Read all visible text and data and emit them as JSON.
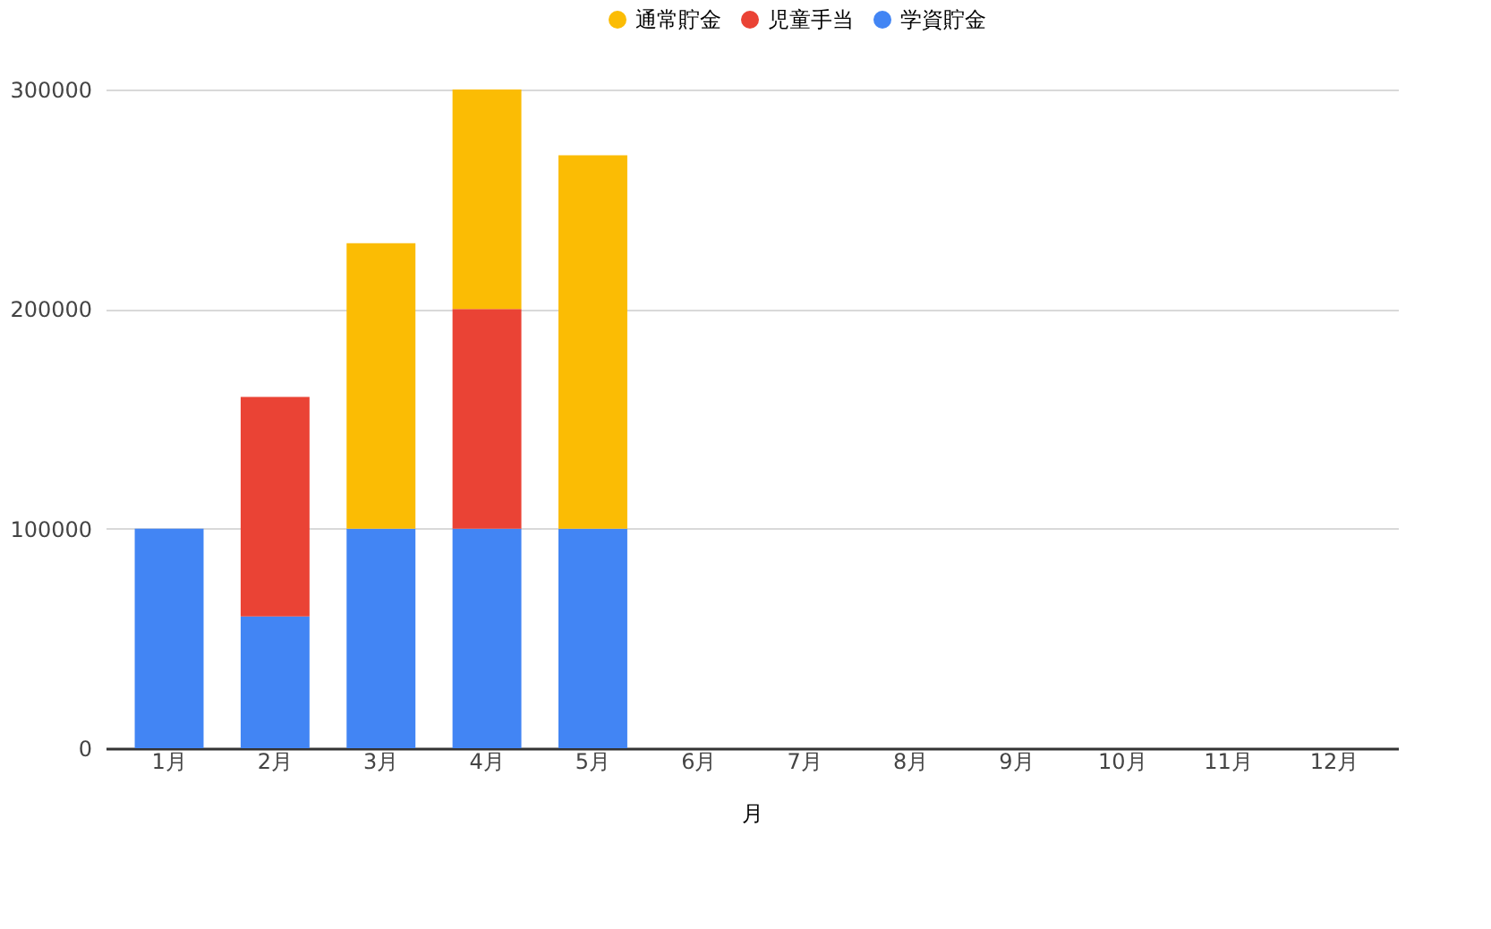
{
  "chart_data": {
    "type": "bar",
    "xlabel": "月",
    "stacked": true,
    "legend": "top",
    "grid": "y",
    "categories": [
      "1月",
      "2月",
      "3月",
      "4月",
      "5月",
      "6月",
      "7月",
      "8月",
      "9月",
      "10月",
      "11月",
      "12月"
    ],
    "series": [
      {
        "name": "学資貯金",
        "color": "#4285f4",
        "values": [
          100000,
          60000,
          100000,
          100000,
          100000,
          null,
          null,
          null,
          null,
          null,
          null,
          null
        ]
      },
      {
        "name": "児童手当",
        "color": "#ea4335",
        "values": [
          null,
          100000,
          null,
          100000,
          null,
          null,
          null,
          null,
          null,
          null,
          null,
          null
        ]
      },
      {
        "name": "通常貯金",
        "color": "#fbbc04",
        "values": [
          null,
          null,
          130000,
          100000,
          170000,
          null,
          null,
          null,
          null,
          null,
          null,
          null
        ]
      }
    ],
    "ylim": [
      0,
      300000
    ],
    "yticks": [
      0,
      100000,
      200000,
      300000
    ]
  }
}
